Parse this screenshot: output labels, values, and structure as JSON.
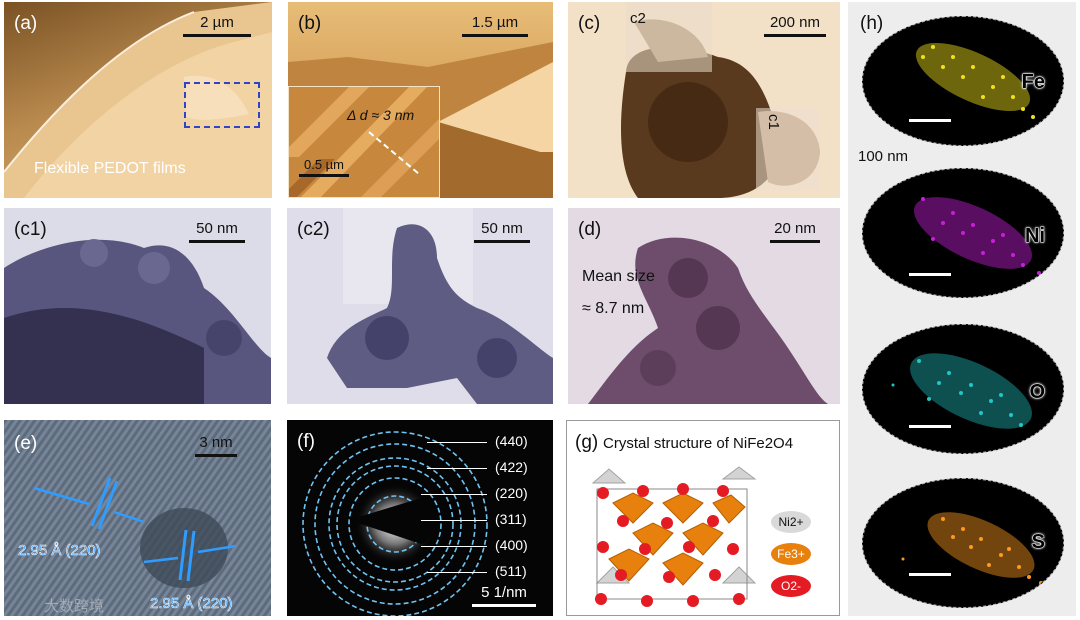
{
  "panels": {
    "a": {
      "label": "(a)",
      "scale": "2 µm",
      "caption": "Flexible PEDOT films"
    },
    "b": {
      "label": "(b)",
      "scale": "1.5 µm",
      "inset_scale": "0.5 µm",
      "inset_annotation": "Δ d ≈ 3 nm"
    },
    "c": {
      "label": "(c)",
      "scale": "200 nm",
      "region1": "c1",
      "region2": "c2"
    },
    "c1": {
      "label": "(c1)",
      "scale": "50 nm"
    },
    "c2": {
      "label": "(c2)",
      "scale": "50 nm"
    },
    "d": {
      "label": "(d)",
      "scale": "20 nm",
      "note_line1": "Mean size",
      "note_line2": "≈ 8.7 nm"
    },
    "e": {
      "label": "(e)",
      "scale": "3 nm",
      "lattice1": "2.95 Å (220)",
      "lattice2": "2.95 Å (220)",
      "watermark": "大数跨境"
    },
    "f": {
      "label": "(f)",
      "scale": "5 1/nm",
      "rings": [
        "(440)",
        "(422)",
        "(220)",
        "(311)",
        "(400)",
        "(511)"
      ]
    },
    "g": {
      "label": "(g)",
      "title": "Crystal structure of NiFe2O4",
      "legend": {
        "ni": "Ni2+",
        "fe": "Fe3+",
        "o": "O2-"
      }
    },
    "h": {
      "label": "(h)",
      "scale": "100 nm",
      "elements": [
        "Fe",
        "Ni",
        "O",
        "S"
      ]
    }
  },
  "colors": {
    "afm_brown": "#b98a4e",
    "tem_blue": "#3c3a66",
    "map_fe": "#f2e21c",
    "map_ni": "#c620d8",
    "map_o": "#22c6c6",
    "map_s": "#ff9a1e",
    "fe_sphere": "#e8800e",
    "o_sphere": "#e41b23",
    "ni_sphere": "#d9d9d9",
    "annotation_blue": "#2f9dff"
  }
}
